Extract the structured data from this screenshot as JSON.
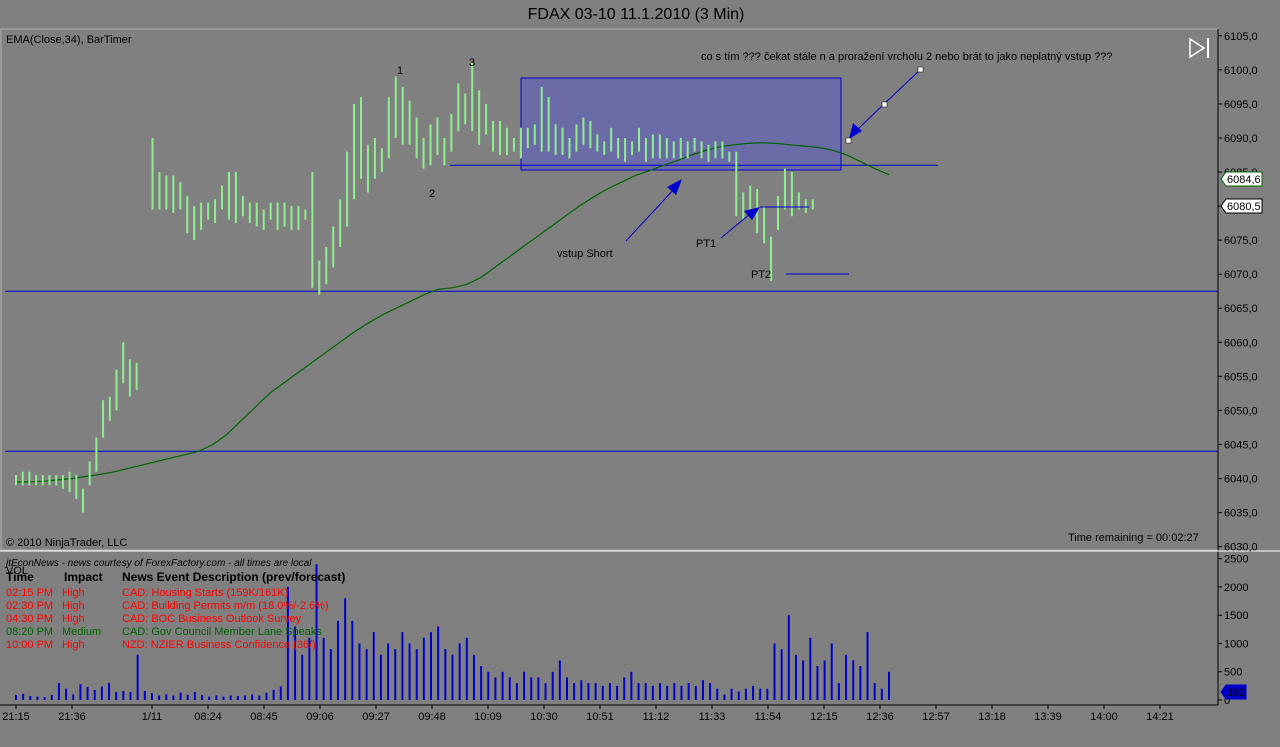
{
  "window": {
    "title": "FDAX 03-10  11.1.2010 (3 Min)",
    "indicator_label": "EMA(Close,34), BarTimer",
    "copyright": "© 2010 NinjaTrader, LLC",
    "time_remaining": "Time remaining = 00:02:27",
    "vol_label": "VOL"
  },
  "chart_data": [
    {
      "type": "bar",
      "title": "FDAX 03-10  11.1.2010 (3 Min)",
      "price_axis": {
        "ticks": [
          "6105,0",
          "6100,0",
          "6095,0",
          "6090,0",
          "6085,0",
          "6080,0",
          "6075,0",
          "6070,0",
          "6065,0",
          "6060,0",
          "6055,0",
          "6050,0",
          "6045,0",
          "6040,0",
          "6035,0",
          "6030,0"
        ],
        "range": [
          6029.5,
          6106
        ]
      },
      "time_labels": [
        "21:15",
        "21:36",
        "1/11",
        "08:24",
        "08:45",
        "09:06",
        "09:27",
        "09:48",
        "10:09",
        "10:30",
        "10:51",
        "11:12",
        "11:33",
        "11:54",
        "12:15",
        "12:36",
        "12:57",
        "13:18",
        "13:39",
        "14:00",
        "14:21"
      ],
      "price_bars": [
        [
          6040.5,
          6039
        ],
        [
          6041,
          6039
        ],
        [
          6041,
          6039
        ],
        [
          6040.5,
          6039
        ],
        [
          6040.5,
          6039
        ],
        [
          6040.5,
          6039
        ],
        [
          6040.5,
          6039
        ],
        [
          6040.5,
          6038.5
        ],
        [
          6041,
          6038
        ],
        [
          6040.5,
          6037
        ],
        [
          6038.5,
          6035
        ],
        [
          6042.5,
          6039
        ],
        [
          6046,
          6041
        ],
        [
          6051.5,
          6046
        ],
        [
          6052,
          6048.5
        ],
        [
          6056,
          6050
        ],
        [
          6060,
          6054
        ],
        [
          6057.5,
          6052
        ],
        [
          6057,
          6053
        ],
        [
          6090,
          6079.5
        ],
        [
          6085,
          6079.5
        ],
        [
          6084.5,
          6079.5
        ],
        [
          6084.5,
          6079
        ],
        [
          6083.5,
          6079.5
        ],
        [
          6081.5,
          6076
        ],
        [
          6080,
          6075
        ],
        [
          6080.5,
          6076.5
        ],
        [
          6080.5,
          6078
        ],
        [
          6081,
          6077.5
        ],
        [
          6083,
          6079.5
        ],
        [
          6085,
          6078
        ],
        [
          6085,
          6077.5
        ],
        [
          6081.5,
          6078.5
        ],
        [
          6080.5,
          6077.5
        ],
        [
          6080.5,
          6077
        ],
        [
          6079.5,
          6076.5
        ],
        [
          6080.5,
          6078
        ],
        [
          6080.5,
          6076.5
        ],
        [
          6080.5,
          6077
        ],
        [
          6080,
          6076.5
        ],
        [
          6080,
          6076.5
        ],
        [
          6079.5,
          6078
        ],
        [
          6085,
          6068
        ],
        [
          6072,
          6067
        ],
        [
          6074,
          6068.5
        ],
        [
          6077,
          6071
        ],
        [
          6081,
          6074
        ],
        [
          6088,
          6077
        ],
        [
          6095,
          6081
        ],
        [
          6096,
          6084
        ],
        [
          6089,
          6082
        ],
        [
          6090,
          6084
        ],
        [
          6088.5,
          6085
        ],
        [
          6096,
          6087
        ],
        [
          6099,
          6090
        ],
        [
          6097.5,
          6089
        ],
        [
          6095.5,
          6089
        ],
        [
          6093,
          6087
        ],
        [
          6090,
          6085.5
        ],
        [
          6092,
          6086
        ],
        [
          6093,
          6087.5
        ],
        [
          6090,
          6086
        ],
        [
          6093.5,
          6088
        ],
        [
          6098,
          6091
        ],
        [
          6096.5,
          6092
        ],
        [
          6101,
          6091
        ],
        [
          6097,
          6089
        ],
        [
          6095,
          6090.5
        ],
        [
          6092.5,
          6088
        ],
        [
          6092.5,
          6087.5
        ],
        [
          6091.5,
          6087.5
        ],
        [
          6090,
          6088
        ],
        [
          6091.5,
          6087
        ],
        [
          6091.5,
          6088.5
        ],
        [
          6092,
          6089
        ],
        [
          6097.5,
          6088
        ],
        [
          6096,
          6088
        ],
        [
          6092,
          6087.5
        ],
        [
          6091.5,
          6087.5
        ],
        [
          6090,
          6087
        ],
        [
          6092,
          6088
        ],
        [
          6093,
          6089
        ],
        [
          6092.5,
          6088.5
        ],
        [
          6090.5,
          6088
        ],
        [
          6089.5,
          6087.5
        ],
        [
          6091.5,
          6088
        ],
        [
          6090,
          6087
        ],
        [
          6090,
          6086.5
        ],
        [
          6089.5,
          6087.5
        ],
        [
          6091.5,
          6088
        ],
        [
          6090,
          6086.5
        ],
        [
          6090.5,
          6087
        ],
        [
          6090.5,
          6087
        ],
        [
          6090,
          6087
        ],
        [
          6089.5,
          6087
        ],
        [
          6090,
          6087
        ],
        [
          6089.5,
          6087
        ],
        [
          6090,
          6088
        ],
        [
          6089.5,
          6087
        ],
        [
          6089,
          6086.5
        ],
        [
          6089.5,
          6087
        ],
        [
          6089.5,
          6087
        ],
        [
          6088,
          6086.5
        ],
        [
          6088,
          6078.5
        ],
        [
          6082,
          6078
        ],
        [
          6083,
          6078.5
        ],
        [
          6082.5,
          6076
        ],
        [
          6080,
          6074.5
        ],
        [
          6075.5,
          6069
        ],
        [
          6081.5,
          6076.5
        ],
        [
          6085.5,
          6079.5
        ],
        [
          6085,
          6078.5
        ],
        [
          6082,
          6079.5
        ],
        [
          6081,
          6079
        ],
        [
          6081,
          6079.5
        ]
      ],
      "ema_34": [
        6039.5,
        6039.5,
        6039.6,
        6039.8,
        6040,
        6040.3,
        6040.6,
        6041,
        6041.5,
        6042,
        6042.5,
        6043,
        6043.5,
        6044,
        6045,
        6046.5,
        6048.5,
        6050.5,
        6052.5,
        6054,
        6055.5,
        6057,
        6058.5,
        6060,
        6061.5,
        6062.8,
        6064,
        6065,
        6066,
        6067,
        6067.8,
        6068,
        6068.5,
        6069.5,
        6071,
        6072.5,
        6074,
        6075.5,
        6077,
        6078.5,
        6080,
        6081.3,
        6082.5,
        6083.5,
        6084.5,
        6085.2,
        6086,
        6086.7,
        6087.5,
        6088.2,
        6088.7,
        6089,
        6089.2,
        6089.3,
        6089.2,
        6089,
        6088.8,
        6088.6,
        6088.2,
        6087.5,
        6086.5,
        6085.5,
        6084.6
      ],
      "horizontal_lines": [
        6067.5,
        6044,
        6086
      ],
      "last_price": "6080,5",
      "ema_value": "6084,6",
      "annotations": {
        "note": "co s tím ??? čekat stále n a proražení vrcholu 2 nebo brát to jako neplatný vstup ???",
        "label_1": "1",
        "label_2": "2",
        "label_3": "3",
        "entry": "vstup Short",
        "pt1": "PT1",
        "pt2": "PT2"
      }
    },
    {
      "type": "bar",
      "series": [
        {
          "name": "VOL",
          "values": [
            90,
            110,
            70,
            60,
            50,
            90,
            300,
            200,
            100,
            280,
            230,
            180,
            240,
            300,
            140,
            160,
            140,
            800,
            160,
            120,
            80,
            100,
            80,
            130,
            90,
            140,
            90,
            60,
            80,
            60,
            80,
            70,
            80,
            100,
            80,
            130,
            180,
            240,
            2000,
            1300,
            800,
            1100,
            2400,
            1100,
            900,
            1400,
            1800,
            1400,
            1000,
            900,
            1200,
            800,
            1000,
            900,
            1200,
            1000,
            900,
            1100,
            1200,
            1300,
            900,
            800,
            1000,
            1100,
            800,
            600,
            500,
            400,
            500,
            400,
            300,
            500,
            400,
            400,
            300,
            500,
            700,
            400,
            300,
            350,
            300,
            300,
            250,
            300,
            250,
            400,
            500,
            300,
            300,
            250,
            300,
            250,
            300,
            250,
            300,
            250,
            350,
            300,
            200,
            100,
            200,
            150,
            200,
            250,
            200,
            200,
            1000,
            900,
            1500,
            800,
            700,
            1100,
            600,
            700,
            1000,
            300,
            800,
            700,
            600,
            1200,
            300,
            200,
            500
          ]
        }
      ],
      "axis": {
        "ticks": [
          "2500",
          "2000",
          "1500",
          "1000",
          "500",
          "0"
        ],
        "range": [
          0,
          2600
        ]
      },
      "current": "102"
    }
  ],
  "news": {
    "header": "jtEconNews - news courtesy of ForexFactory.com - all times are local",
    "columns": [
      "Time",
      "Impact",
      "News Event Description (prev/forecast)"
    ],
    "rows": [
      {
        "time": "02:15 PM",
        "impact": "High",
        "desc": "CAD: Housing Starts (159K/161K)",
        "color": "#ff0000"
      },
      {
        "time": "02:30 PM",
        "impact": "High",
        "desc": "CAD: Building Permits m/m (18.0%/-2.6%)",
        "color": "#ff0000"
      },
      {
        "time": "04:30 PM",
        "impact": "High",
        "desc": "CAD: BOC Business Outlook Survey",
        "color": "#ff0000"
      },
      {
        "time": "08:20 PM",
        "impact": "Medium",
        "desc": "CAD: Gov Council Member Lane Speaks",
        "color": "#006400"
      },
      {
        "time": "10:00 PM",
        "impact": "High",
        "desc": "NZD: NZIER Business Confidence (36/)",
        "color": "#ff0000"
      }
    ]
  },
  "colors": {
    "background": "#808080",
    "bars": "#90ee90",
    "ema": "#006400",
    "lines": "#0000cd",
    "box_fill": "#6b6ba8",
    "volume": "#0000cd"
  }
}
